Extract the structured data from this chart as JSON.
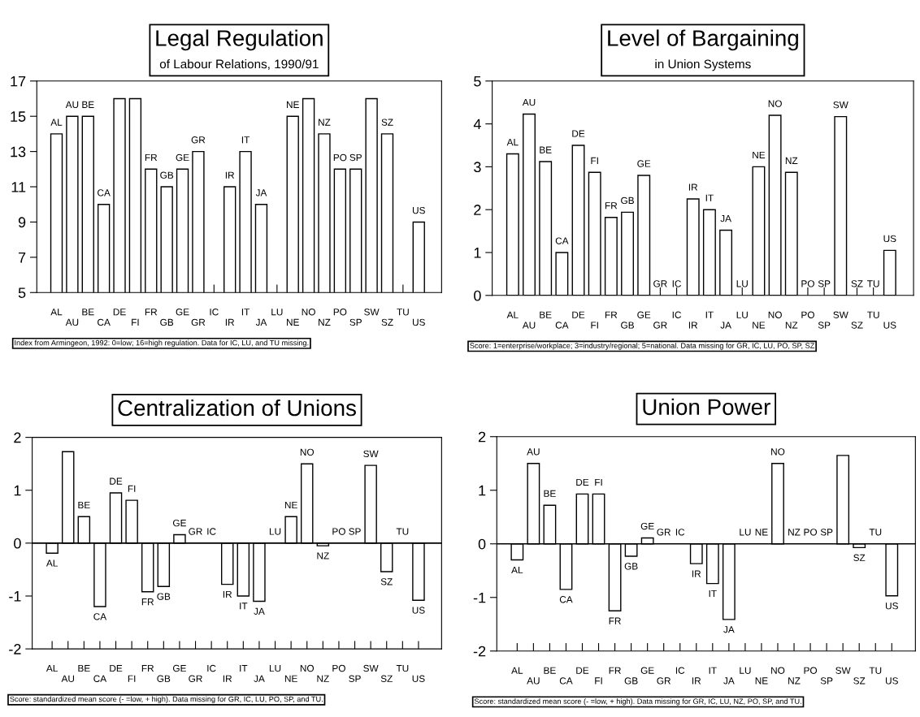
{
  "chart_data": [
    {
      "type": "bar",
      "title": "Legal Regulation",
      "subtitle": "of Labour Relations, 1990/91",
      "categories": [
        "AL",
        "AU",
        "BE",
        "CA",
        "DE",
        "FI",
        "FR",
        "GB",
        "GE",
        "GR",
        "IC",
        "IR",
        "IT",
        "JA",
        "LU",
        "NE",
        "NO",
        "NZ",
        "PO",
        "SP",
        "SW",
        "SZ",
        "TU",
        "US"
      ],
      "values": [
        14,
        15,
        15,
        10,
        16,
        16,
        12,
        11,
        12,
        13,
        null,
        11,
        13,
        10,
        null,
        15,
        16,
        14,
        12,
        12,
        16,
        14,
        null,
        9
      ],
      "value_labels": [
        "AL",
        "AU",
        "BE",
        "CA",
        null,
        null,
        "FR",
        "GB",
        "GE",
        "GR",
        null,
        "IR",
        "IT",
        "JA",
        null,
        "NE",
        null,
        "NZ",
        "PO",
        "SP",
        null,
        "SZ",
        null,
        "US"
      ],
      "color": "#ffffff",
      "ylim": [
        5,
        17
      ],
      "yticks": [
        5,
        7,
        9,
        11,
        13,
        15,
        17
      ],
      "grid": false,
      "legend": false,
      "annotations": [
        "Index from Armingeon, 1992: 0=low; 16=high regulation. Data for IC, LU, and TU missing."
      ]
    },
    {
      "type": "bar",
      "title": "Level of Bargaining",
      "subtitle": "in Union Systems",
      "categories": [
        "AL",
        "AU",
        "BE",
        "CA",
        "DE",
        "FI",
        "FR",
        "GB",
        "GE",
        "GR",
        "IC",
        "IR",
        "IT",
        "JA",
        "LU",
        "NE",
        "NO",
        "NZ",
        "PO",
        "SP",
        "SW",
        "SZ",
        "TU",
        "US"
      ],
      "values": [
        3.3,
        4.23,
        3.12,
        1.0,
        3.5,
        2.87,
        1.82,
        1.94,
        2.8,
        null,
        null,
        2.25,
        2.0,
        1.52,
        null,
        3.0,
        4.2,
        2.87,
        null,
        null,
        4.17,
        null,
        null,
        1.05
      ],
      "value_labels": [
        "AL",
        "AU",
        "BE",
        "CA",
        "DE",
        "FI",
        "FR",
        "GB",
        "GE",
        "GR",
        "IC",
        "IR",
        "IT",
        "JA",
        "LU",
        "NE",
        "NO",
        "NZ",
        "PO",
        "SP",
        "SW",
        "SZ",
        "TU",
        "US"
      ],
      "color": "#ffffff",
      "ylim": [
        0,
        5
      ],
      "yticks": [
        0,
        1,
        2,
        3,
        4,
        5
      ],
      "grid": false,
      "legend": false,
      "annotations": [
        "Score: 1=enterprise/workplace; 3=industry/regional; 5=national. Data missing for GR, IC, LU, PO, SP, SZ"
      ]
    },
    {
      "type": "bar",
      "title": "Centralization of Unions",
      "categories": [
        "AL",
        "AU",
        "BE",
        "CA",
        "DE",
        "FI",
        "FR",
        "GB",
        "GE",
        "GR",
        "IC",
        "IR",
        "IT",
        "JA",
        "LU",
        "NE",
        "NO",
        "NZ",
        "PO",
        "SP",
        "SW",
        "SZ",
        "TU",
        "US"
      ],
      "values": [
        -0.19,
        1.73,
        0.5,
        -1.2,
        0.95,
        0.81,
        -0.92,
        -0.82,
        0.16,
        null,
        null,
        -0.78,
        -1.0,
        -1.1,
        null,
        0.5,
        1.5,
        -0.05,
        null,
        null,
        1.47,
        -0.54,
        null,
        -1.08
      ],
      "value_labels": [
        "AL",
        null,
        "BE",
        "CA",
        "DE",
        "FI",
        "FR",
        "GB",
        "GE",
        "GR",
        "IC",
        "IR",
        "IT",
        "JA",
        "LU",
        "NE",
        "NO",
        "NZ",
        "PO",
        "SP",
        "SW",
        "SZ",
        "TU",
        "US"
      ],
      "color": "#ffffff",
      "ylim": [
        -2,
        2
      ],
      "yticks": [
        -2,
        -1,
        0,
        1,
        2
      ],
      "grid": false,
      "legend": false,
      "ref_lines": [
        {
          "axis": "y",
          "value": 0,
          "label": null,
          "color": "#000000"
        }
      ],
      "annotations": [
        "Score: standardized mean score (- =low, + high). Data missing for GR, IC, LU, PO, SP, and TU."
      ]
    },
    {
      "type": "bar",
      "title": "Union Power",
      "categories": [
        "AL",
        "AU",
        "BE",
        "CA",
        "DE",
        "FI",
        "FR",
        "GB",
        "GE",
        "GR",
        "IC",
        "IR",
        "IT",
        "JA",
        "LU",
        "NE",
        "NO",
        "NZ",
        "PO",
        "SP",
        "SW",
        "SZ",
        "TU",
        "US"
      ],
      "values": [
        -0.3,
        1.5,
        0.72,
        -0.85,
        0.93,
        0.93,
        -1.25,
        -0.23,
        0.11,
        null,
        null,
        -0.37,
        -0.74,
        -1.41,
        null,
        null,
        1.5,
        null,
        null,
        null,
        1.65,
        -0.07,
        null,
        -0.97
      ],
      "value_labels": [
        "AL",
        "AU",
        "BE",
        "CA",
        "DE",
        "FI",
        "FR",
        "GB",
        "GE",
        "GR",
        "IC",
        "IR",
        "IT",
        "JA",
        "LU",
        "NE",
        "NO",
        "NZ",
        "PO",
        "SP",
        null,
        "SZ",
        "TU",
        "US"
      ],
      "color": "#ffffff",
      "ylim": [
        -2,
        2
      ],
      "yticks": [
        -2,
        -1,
        0,
        1,
        2
      ],
      "grid": false,
      "legend": false,
      "ref_lines": [
        {
          "axis": "y",
          "value": 0,
          "label": null,
          "color": "#000000"
        }
      ],
      "annotations": [
        "Score: standardized mean score (- =low, + high). Data missing for GR, IC, LU, NZ, PO, SP, and TU."
      ]
    }
  ]
}
